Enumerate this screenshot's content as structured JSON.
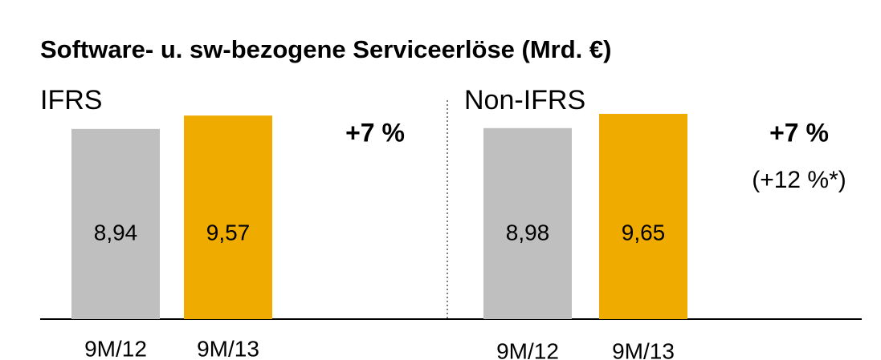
{
  "title": "Software- u. sw-bezogene Serviceerlöse (Mrd. €)",
  "chart_data": [
    {
      "type": "bar",
      "subtitle": "IFRS",
      "categories": [
        "9M/12",
        "9M/13"
      ],
      "values": [
        8.94,
        9.57
      ],
      "value_labels": [
        "8,94",
        "9,57"
      ],
      "colors": [
        "#bfbfbf",
        "#f0ab00"
      ],
      "annotation": "+7 %"
    },
    {
      "type": "bar",
      "subtitle": "Non-IFRS",
      "categories": [
        "9M/12",
        "9M/13"
      ],
      "values": [
        8.98,
        9.65
      ],
      "value_labels": [
        "8,98",
        "9,65"
      ],
      "colors": [
        "#bfbfbf",
        "#f0ab00"
      ],
      "annotation": "+7 %",
      "note": "(+12 %*)"
    }
  ]
}
